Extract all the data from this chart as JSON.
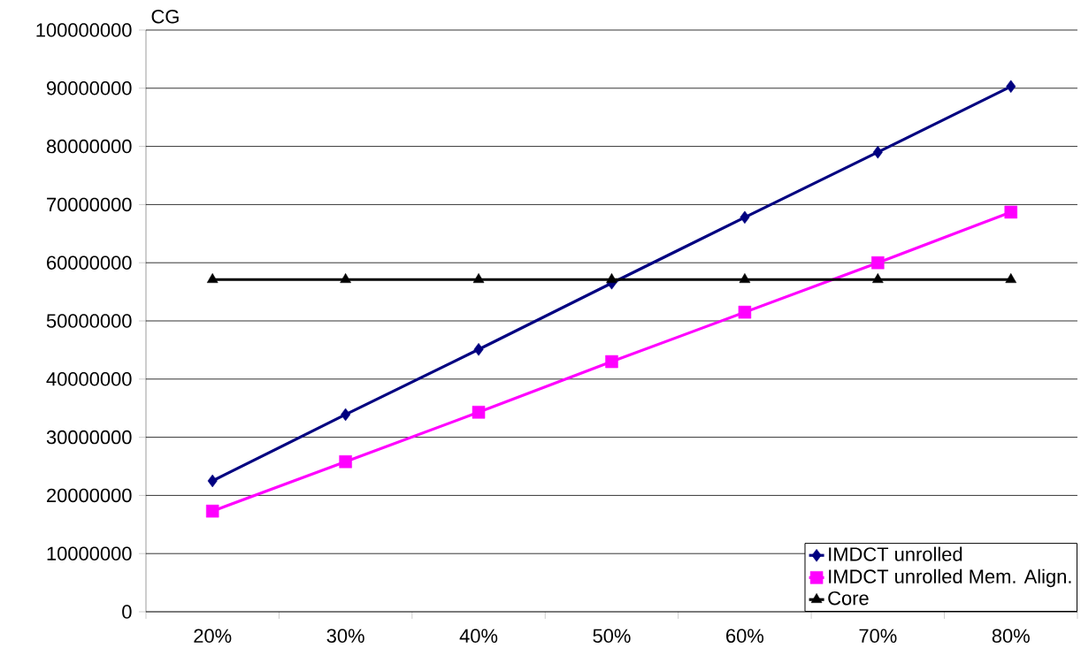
{
  "chart_data": {
    "type": "line",
    "ylabel": "CG",
    "categories": [
      "20%",
      "30%",
      "40%",
      "50%",
      "60%",
      "70%",
      "80%"
    ],
    "series": [
      {
        "name": "IMDCT unrolled",
        "color": "#000080",
        "marker": "diamond",
        "values": [
          22500000,
          33900000,
          45100000,
          56500000,
          67800000,
          79000000,
          90300000
        ]
      },
      {
        "name": "IMDCT unrolled Mem. Align.",
        "color": "#ff00ff",
        "marker": "square",
        "values": [
          17300000,
          25800000,
          34300000,
          43000000,
          51500000,
          60000000,
          68700000
        ]
      },
      {
        "name": "Core",
        "color": "#000000",
        "marker": "triangle",
        "values": [
          57100000,
          57100000,
          57100000,
          57100000,
          57100000,
          57100000,
          57100000
        ]
      }
    ],
    "ylim": [
      0,
      100000000
    ],
    "yticks": [
      0,
      10000000,
      20000000,
      30000000,
      40000000,
      50000000,
      60000000,
      70000000,
      80000000,
      90000000,
      100000000
    ],
    "grid": "y",
    "legend": "bottom right",
    "line_style": "solid"
  }
}
